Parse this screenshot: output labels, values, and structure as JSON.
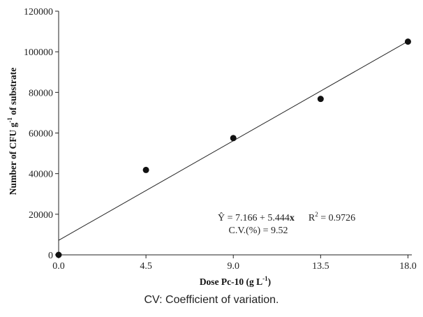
{
  "chart_data": {
    "type": "scatter",
    "xlabel_main": "Dose Pc-10 (g L",
    "xlabel_sup": "-1",
    "xlabel_end": ")",
    "ylabel_main": "Number of CFU g",
    "ylabel_sup": "-1",
    "ylabel_end": " of substrate",
    "xlim": [
      0,
      18.2
    ],
    "ylim": [
      0,
      120000
    ],
    "x_ticks": [
      "0.0",
      "4.5",
      "9.0",
      "13.5",
      "18.0"
    ],
    "x_tick_values": [
      0,
      4.5,
      9.0,
      13.5,
      18.0
    ],
    "y_ticks": [
      "0",
      "20000",
      "40000",
      "60000",
      "80000",
      "100000",
      "120000"
    ],
    "y_tick_values": [
      0,
      20000,
      40000,
      60000,
      80000,
      100000,
      120000
    ],
    "points": [
      {
        "x": 0.0,
        "y": 0
      },
      {
        "x": 4.5,
        "y": 41800
      },
      {
        "x": 9.0,
        "y": 57500
      },
      {
        "x": 13.5,
        "y": 76800
      },
      {
        "x": 18.0,
        "y": 105000
      }
    ],
    "fit_line": {
      "x": [
        0,
        18.0
      ],
      "y": [
        7166,
        105158
      ]
    },
    "equation_text": "Ŷ = 7.166 + 5.444",
    "equation_var": "x",
    "r2_label": "R",
    "r2_sup": "2",
    "r2_value": " = 0.9726",
    "cv_text": "C.V.(%) = 9.52",
    "grid": false,
    "legend": "none"
  },
  "caption": "CV: Coefficient of variation."
}
